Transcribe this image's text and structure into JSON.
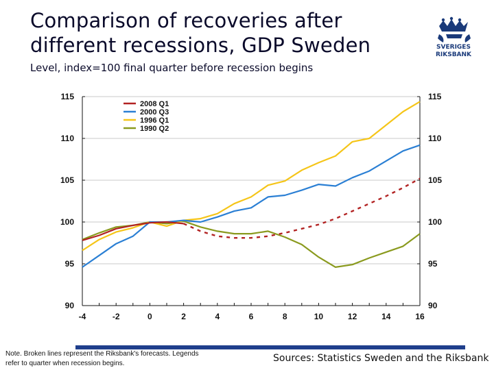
{
  "title": "Comparison of recoveries after different recessions, GDP Sweden",
  "subtitle": "Level, index=100 final quarter before recession begins",
  "logo": {
    "text_line1": "SVERIGES",
    "text_line2": "RIKSBANK"
  },
  "footer": {
    "note": "Note. Broken lines represent the Riksbank's forecasts. Legends refer to quarter when recession begins.",
    "sources": "Sources: Statistics Sweden and the Riksbank",
    "bar_color": "#1f3f8c"
  },
  "chart_data": {
    "type": "line",
    "xlim": [
      -4,
      16
    ],
    "ylim": [
      90,
      115
    ],
    "x_ticks": [
      -4,
      -2,
      0,
      2,
      4,
      6,
      8,
      10,
      12,
      14,
      16
    ],
    "y_ticks": [
      90,
      95,
      100,
      105,
      110,
      115
    ],
    "grid": "horizontal",
    "legend_position": "top-left",
    "series": [
      {
        "name": "2008 Q1",
        "color": "#b22222",
        "x": [
          -4,
          -3,
          -2,
          -1,
          0,
          1,
          2
        ],
        "values": [
          97.8,
          98.4,
          99.2,
          99.6,
          99.9,
          100.0,
          99.8
        ],
        "forecast_x": [
          2,
          3,
          4,
          5,
          6,
          7,
          8,
          9,
          10,
          11,
          12,
          13,
          14,
          15,
          16
        ],
        "forecast_values": [
          99.8,
          98.9,
          98.3,
          98.1,
          98.1,
          98.3,
          98.7,
          99.2,
          99.7,
          100.4,
          101.3,
          102.2,
          103.1,
          104.1,
          105.2
        ]
      },
      {
        "name": "2000 Q3",
        "color": "#2a7fd4",
        "x": [
          -4,
          -3,
          -2,
          -1,
          0,
          1,
          2,
          3,
          4,
          5,
          6,
          7,
          8,
          9,
          10,
          11,
          12,
          13,
          14,
          15,
          16
        ],
        "values": [
          94.6,
          96.0,
          97.4,
          98.3,
          100.0,
          100.0,
          100.2,
          100.0,
          100.6,
          101.3,
          101.7,
          103.0,
          103.2,
          103.8,
          104.5,
          104.3,
          105.3,
          106.1,
          107.3,
          108.5,
          109.2
        ]
      },
      {
        "name": "1996 Q1",
        "color": "#f5c518",
        "x": [
          -4,
          -3,
          -2,
          -1,
          0,
          1,
          2,
          3,
          4,
          5,
          6,
          7,
          8,
          9,
          10,
          11,
          12,
          13,
          14,
          15,
          16
        ],
        "values": [
          96.6,
          97.9,
          98.8,
          99.3,
          100.0,
          99.5,
          100.2,
          100.4,
          101.0,
          102.2,
          103.0,
          104.4,
          104.9,
          106.2,
          107.1,
          107.9,
          109.6,
          110.0,
          111.6,
          113.2,
          114.4
        ]
      },
      {
        "name": "1990 Q2",
        "color": "#8a9a1e",
        "x": [
          -4,
          -3,
          -2,
          -1,
          0,
          1,
          2,
          3,
          4,
          5,
          6,
          7,
          8,
          9,
          10,
          11,
          12,
          13,
          14,
          15,
          16
        ],
        "values": [
          97.9,
          98.7,
          99.4,
          99.6,
          100.0,
          99.8,
          100.1,
          99.4,
          98.9,
          98.6,
          98.6,
          98.9,
          98.2,
          97.3,
          95.8,
          94.6,
          94.9,
          95.7,
          96.4,
          97.1,
          98.6
        ]
      }
    ]
  }
}
